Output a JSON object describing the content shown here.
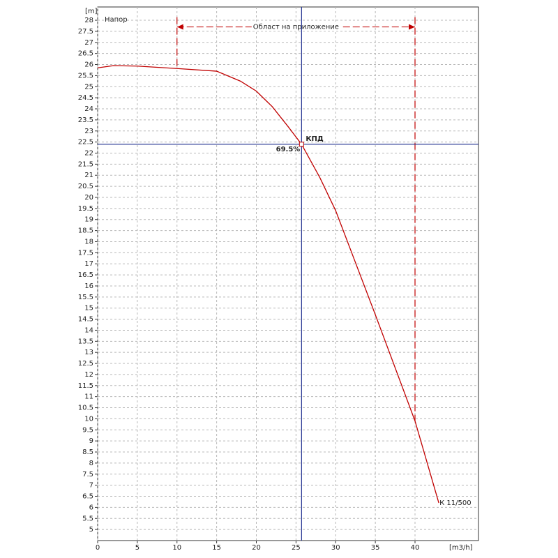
{
  "chart_data": {
    "type": "line",
    "title": "Напор",
    "y_label": "[m]",
    "x_label": "[m3/h]",
    "x": [
      0,
      2,
      5,
      10,
      15,
      18,
      20,
      22,
      24,
      25.7,
      28,
      30,
      35,
      40,
      43
    ],
    "series": [
      {
        "name": "К 11/500",
        "color": "#c00000",
        "values": [
          25.85,
          25.95,
          25.93,
          25.82,
          25.7,
          25.25,
          24.8,
          24.1,
          23.2,
          22.4,
          20.9,
          19.4,
          14.7,
          9.9,
          6.2
        ]
      }
    ],
    "xlim": [
      0,
      48
    ],
    "ylim": [
      4.5,
      28.6
    ],
    "xticks": [
      0,
      5,
      10,
      15,
      20,
      25,
      30,
      35,
      40
    ],
    "yticks": [
      5,
      5.5,
      6,
      6.5,
      7,
      7.5,
      8,
      8.5,
      9,
      9.5,
      10,
      10.5,
      11,
      11.5,
      12,
      12.5,
      13,
      13.5,
      14,
      14.5,
      15,
      15.5,
      16,
      16.5,
      17,
      17.5,
      18,
      18.5,
      19,
      19.5,
      20,
      20.5,
      21,
      21.5,
      22,
      22.5,
      23,
      23.5,
      24,
      24.5,
      25,
      25.5,
      26,
      26.5,
      27,
      27.5,
      28
    ],
    "grid": true,
    "operating_point": {
      "x": 25.7,
      "y": 22.4,
      "label": "КПД",
      "efficiency_label": "69.5%",
      "color": "#1f2f8f"
    },
    "application_range": {
      "label": "Област на приложение",
      "x": [
        10,
        40
      ],
      "y": 27.7
    }
  }
}
